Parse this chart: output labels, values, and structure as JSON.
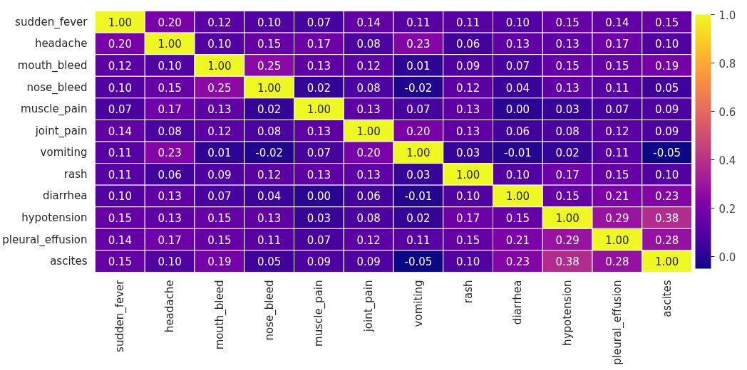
{
  "chart_data": {
    "type": "heatmap",
    "categories": [
      "sudden_fever",
      "headache",
      "mouth_bleed",
      "nose_bleed",
      "muscle_pain",
      "joint_pain",
      "vomiting",
      "rash",
      "diarrhea",
      "hypotension",
      "pleural_effusion",
      "ascites"
    ],
    "y_categories": [
      "sudden_fever",
      "headache",
      "mouth_bleed",
      "nose_bleed",
      "muscle_pain",
      "joint_pain",
      "vomiting",
      "rash",
      "diarrhea",
      "hypotension",
      "pleural_effusion",
      "ascites"
    ],
    "cells": [
      [
        1.0,
        0.2,
        0.12,
        0.1,
        0.07,
        0.14,
        0.11,
        0.11,
        0.1,
        0.15,
        0.14,
        0.15
      ],
      [
        0.2,
        1.0,
        0.1,
        0.15,
        0.17,
        0.08,
        0.23,
        0.06,
        0.13,
        0.13,
        0.17,
        0.1
      ],
      [
        0.12,
        0.1,
        1.0,
        0.25,
        0.13,
        0.12,
        0.01,
        0.09,
        0.07,
        0.15,
        0.15,
        0.19
      ],
      [
        0.1,
        0.15,
        0.25,
        1.0,
        0.02,
        0.08,
        -0.02,
        0.12,
        0.04,
        0.13,
        0.11,
        0.05
      ],
      [
        0.07,
        0.17,
        0.13,
        0.02,
        1.0,
        0.13,
        0.07,
        0.13,
        0.0,
        0.03,
        0.07,
        0.09
      ],
      [
        0.14,
        0.08,
        0.12,
        0.08,
        0.13,
        1.0,
        0.2,
        0.13,
        0.06,
        0.08,
        0.12,
        0.09
      ],
      [
        0.11,
        0.23,
        0.01,
        -0.02,
        0.07,
        0.2,
        1.0,
        0.03,
        -0.01,
        0.02,
        0.11,
        -0.05
      ],
      [
        0.11,
        0.06,
        0.09,
        0.12,
        0.13,
        0.13,
        0.03,
        1.0,
        0.1,
        0.17,
        0.15,
        0.1
      ],
      [
        0.1,
        0.13,
        0.07,
        0.04,
        0.0,
        0.06,
        -0.01,
        0.1,
        1.0,
        0.15,
        0.21,
        0.23
      ],
      [
        0.15,
        0.13,
        0.15,
        0.13,
        0.03,
        0.08,
        0.02,
        0.17,
        0.15,
        1.0,
        0.29,
        0.38
      ],
      [
        0.14,
        0.17,
        0.15,
        0.11,
        0.07,
        0.12,
        0.11,
        0.15,
        0.21,
        0.29,
        1.0,
        0.28
      ],
      [
        0.15,
        0.1,
        0.19,
        0.05,
        0.09,
        0.09,
        -0.05,
        0.1,
        0.23,
        0.38,
        0.28,
        1.0
      ]
    ],
    "cell_labels": [
      [
        "1.00",
        "0.20",
        "0.12",
        "0.10",
        "0.07",
        "0.14",
        "0.11",
        "0.11",
        "0.10",
        "0.15",
        "0.14",
        "0.15"
      ],
      [
        "0.20",
        "1.00",
        "0.10",
        "0.15",
        "0.17",
        "0.08",
        "0.23",
        "0.06",
        "0.13",
        "0.13",
        "0.17",
        "0.10"
      ],
      [
        "0.12",
        "0.10",
        "1.00",
        "0.25",
        "0.13",
        "0.12",
        "0.01",
        "0.09",
        "0.07",
        "0.15",
        "0.15",
        "0.19"
      ],
      [
        "0.10",
        "0.15",
        "0.25",
        "1.00",
        "0.02",
        "0.08",
        "-0.02",
        "0.12",
        "0.04",
        "0.13",
        "0.11",
        "0.05"
      ],
      [
        "0.07",
        "0.17",
        "0.13",
        "0.02",
        "1.00",
        "0.13",
        "0.07",
        "0.13",
        "0.00",
        "0.03",
        "0.07",
        "0.09"
      ],
      [
        "0.14",
        "0.08",
        "0.12",
        "0.08",
        "0.13",
        "1.00",
        "0.20",
        "0.13",
        "0.06",
        "0.08",
        "0.12",
        "0.09"
      ],
      [
        "0.11",
        "0.23",
        "0.01",
        "-0.02",
        "0.07",
        "0.20",
        "1.00",
        "0.03",
        "-0.01",
        "0.02",
        "0.11",
        "-0.05"
      ],
      [
        "0.11",
        "0.06",
        "0.09",
        "0.12",
        "0.13",
        "0.13",
        "0.03",
        "1.00",
        "0.10",
        "0.17",
        "0.15",
        "0.10"
      ],
      [
        "0.10",
        "0.13",
        "0.07",
        "0.04",
        "0.00",
        "0.06",
        "-0.01",
        "0.10",
        "1.00",
        "0.15",
        "0.21",
        "0.23"
      ],
      [
        "0.15",
        "0.13",
        "0.15",
        "0.13",
        "0.03",
        "0.08",
        "0.02",
        "0.17",
        "0.15",
        "1.00",
        "0.29",
        "0.38"
      ],
      [
        "0.14",
        "0.17",
        "0.15",
        "0.11",
        "0.07",
        "0.12",
        "0.11",
        "0.15",
        "0.21",
        "0.29",
        "1.00",
        "0.28"
      ],
      [
        "0.15",
        "0.10",
        "0.19",
        "0.05",
        "0.09",
        "0.09",
        "-0.05",
        "0.10",
        "0.23",
        "0.38",
        "0.28",
        "1.00"
      ]
    ],
    "clim": [
      -0.05,
      1.0
    ],
    "cticks": [
      {
        "value": 0,
        "label": "0.0"
      },
      {
        "value": 0.2,
        "label": "0.2"
      },
      {
        "value": 0.4,
        "label": "0.4"
      },
      {
        "value": 0.6,
        "label": "0.6"
      },
      {
        "value": 0.8,
        "label": "0.8"
      },
      {
        "value": 1,
        "label": "1.0"
      }
    ]
  }
}
